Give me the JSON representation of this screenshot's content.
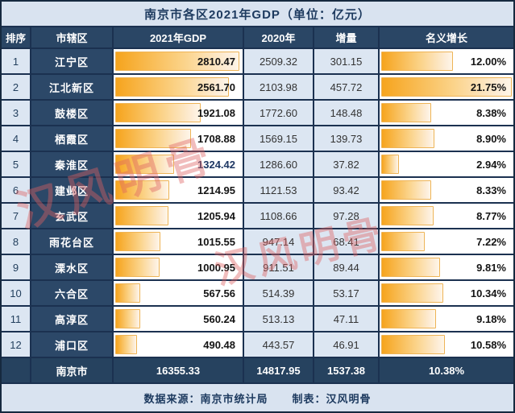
{
  "title": "南京市各区2021年GDP（单位：亿元）",
  "watermark": {
    "text": "汉风明骨"
  },
  "table": {
    "columns": [
      "排序",
      "市辖区",
      "2021年GDP",
      "2020年",
      "增量",
      "名义增长"
    ],
    "gdp_bar_max": 2810.47,
    "growth_bar_max": 21.75,
    "rows": [
      {
        "rank": "1",
        "district": "江宁区",
        "gdp": "2810.47",
        "gdp_num": 2810.47,
        "y2020": "2509.32",
        "delta": "301.15",
        "growth": "12.00%",
        "growth_num": 12.0
      },
      {
        "rank": "2",
        "district": "江北新区",
        "gdp": "2561.70",
        "gdp_num": 2561.7,
        "y2020": "2103.98",
        "delta": "457.72",
        "growth": "21.75%",
        "growth_num": 21.75
      },
      {
        "rank": "3",
        "district": "鼓楼区",
        "gdp": "1921.08",
        "gdp_num": 1921.08,
        "y2020": "1772.60",
        "delta": "148.48",
        "growth": "8.38%",
        "growth_num": 8.38
      },
      {
        "rank": "4",
        "district": "栖霞区",
        "gdp": "1708.88",
        "gdp_num": 1708.88,
        "y2020": "1569.15",
        "delta": "139.73",
        "growth": "8.90%",
        "growth_num": 8.9
      },
      {
        "rank": "5",
        "district": "秦淮区",
        "gdp": "1324.42",
        "gdp_num": 1324.42,
        "gdp_text_color": "#1f3864",
        "y2020": "1286.60",
        "delta": "37.82",
        "growth": "2.94%",
        "growth_num": 2.94
      },
      {
        "rank": "6",
        "district": "建邺区",
        "gdp": "1214.95",
        "gdp_num": 1214.95,
        "y2020": "1121.53",
        "delta": "93.42",
        "growth": "8.33%",
        "growth_num": 8.33
      },
      {
        "rank": "7",
        "district": "玄武区",
        "gdp": "1205.94",
        "gdp_num": 1205.94,
        "y2020": "1108.66",
        "delta": "97.28",
        "growth": "8.77%",
        "growth_num": 8.77
      },
      {
        "rank": "8",
        "district": "雨花台区",
        "gdp": "1015.55",
        "gdp_num": 1015.55,
        "y2020": "947.14",
        "delta": "68.41",
        "growth": "7.22%",
        "growth_num": 7.22
      },
      {
        "rank": "9",
        "district": "溧水区",
        "gdp": "1000.95",
        "gdp_num": 1000.95,
        "y2020": "911.51",
        "delta": "89.44",
        "growth": "9.81%",
        "growth_num": 9.81
      },
      {
        "rank": "10",
        "district": "六合区",
        "gdp": "567.56",
        "gdp_num": 567.56,
        "y2020": "514.39",
        "delta": "53.17",
        "growth": "10.34%",
        "growth_num": 10.34
      },
      {
        "rank": "11",
        "district": "高淳区",
        "gdp": "560.24",
        "gdp_num": 560.24,
        "y2020": "513.13",
        "delta": "47.11",
        "growth": "9.18%",
        "growth_num": 9.18
      },
      {
        "rank": "12",
        "district": "浦口区",
        "gdp": "490.48",
        "gdp_num": 490.48,
        "y2020": "443.57",
        "delta": "46.91",
        "growth": "10.58%",
        "growth_num": 10.58
      }
    ],
    "total": {
      "rank": "",
      "label": "南京市",
      "gdp": "16355.33",
      "y2020": "14817.95",
      "delta": "1537.38",
      "growth": "10.38%"
    }
  },
  "footer": {
    "source": "数据来源：南京市统计局",
    "maker": "制表：汉风明骨"
  },
  "colors": {
    "navy_cell": "#2c4868",
    "navy_header": "#2a4665",
    "light_cell": "#dce6f2",
    "title_bg": "#d9e3f0",
    "bar_orange": "#f6a41d",
    "bar_light": "#fdeedb",
    "watermark_red": "#de6262",
    "grid_line": "#1b3150"
  },
  "chart_data": {
    "type": "table",
    "title": "南京市各区2021年GDP（单位：亿元）",
    "columns": [
      "排序",
      "市辖区",
      "2021年GDP",
      "2020年",
      "增量",
      "名义增长"
    ],
    "categories": [
      "江宁区",
      "江北新区",
      "鼓楼区",
      "栖霞区",
      "秦淮区",
      "建邺区",
      "玄武区",
      "雨花台区",
      "溧水区",
      "六合区",
      "高淳区",
      "浦口区"
    ],
    "series": [
      {
        "name": "2021年GDP",
        "values": [
          2810.47,
          2561.7,
          1921.08,
          1708.88,
          1324.42,
          1214.95,
          1205.94,
          1015.55,
          1000.95,
          567.56,
          560.24,
          490.48
        ]
      },
      {
        "name": "2020年",
        "values": [
          2509.32,
          2103.98,
          1772.6,
          1569.15,
          1286.6,
          1121.53,
          1108.66,
          947.14,
          911.51,
          514.39,
          513.13,
          443.57
        ]
      },
      {
        "name": "增量",
        "values": [
          301.15,
          457.72,
          148.48,
          139.73,
          37.82,
          93.42,
          97.28,
          68.41,
          89.44,
          53.17,
          47.11,
          46.91
        ]
      },
      {
        "name": "名义增长%",
        "values": [
          12.0,
          21.75,
          8.38,
          8.9,
          2.94,
          8.33,
          8.77,
          7.22,
          9.81,
          10.34,
          9.18,
          10.58
        ]
      }
    ],
    "total": {
      "name": "南京市",
      "gdp_2021": 16355.33,
      "gdp_2020": 14817.95,
      "delta": 1537.38,
      "growth_pct": 10.38
    }
  }
}
